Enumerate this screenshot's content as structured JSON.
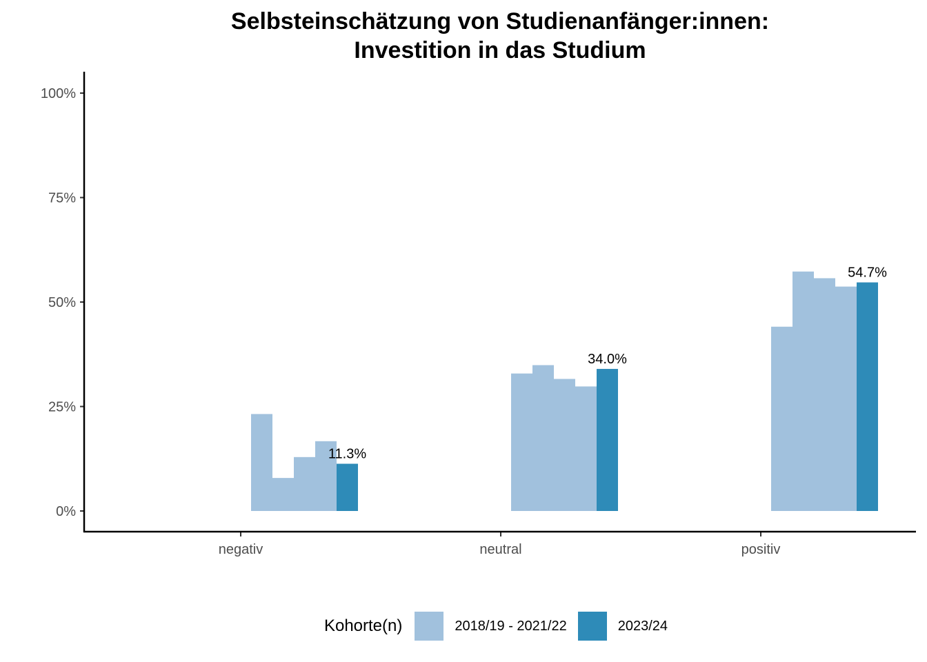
{
  "chart_data": {
    "type": "bar",
    "title": [
      "Selbsteinschätzung von Studienanfänger:innen:",
      "Investition in das Studium"
    ],
    "categories": [
      "negativ",
      "neutral",
      "positiv"
    ],
    "y_ticks": [
      "0%",
      "25%",
      "50%",
      "75%",
      "100%"
    ],
    "ylim": [
      0,
      1.05
    ],
    "series": [
      {
        "name": "2018/19 - 2021/22",
        "color": "#a1c1dd",
        "cohorts": 4,
        "values": [
          [
            0.232,
            0.079,
            0.129,
            0.167
          ],
          [
            0.329,
            0.349,
            0.316,
            0.298
          ],
          [
            0.441,
            0.573,
            0.557,
            0.537
          ]
        ]
      },
      {
        "name": "2023/24",
        "color": "#2e8bb8",
        "values": [
          0.113,
          0.34,
          0.547
        ],
        "labels": [
          "11.3%",
          "34.0%",
          "54.7%"
        ]
      }
    ],
    "legend": {
      "title": "Kohorte(n)",
      "position": "bottom"
    },
    "grid": false
  }
}
